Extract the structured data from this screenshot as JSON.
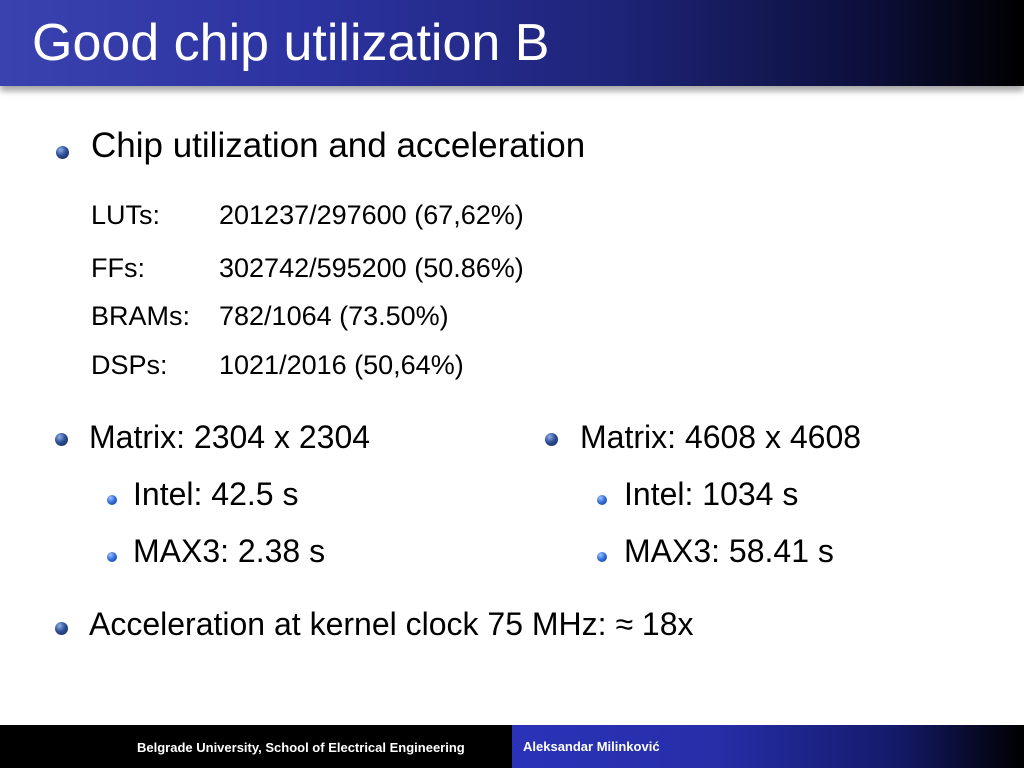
{
  "title": "Good chip utilization B",
  "section_heading": "Chip utilization and acceleration",
  "stats": [
    {
      "label": "LUTs:",
      "value": "201237/297600 (67,62%)"
    },
    {
      "label": "FFs:",
      "value": "302742/595200 (50.86%)"
    },
    {
      "label": "BRAMs:",
      "value": "782/1064 (73.50%)"
    },
    {
      "label": "DSPs:",
      "value": "1021/2016 (50,64%)"
    }
  ],
  "matrices": [
    {
      "heading": "Matrix: 2304 x 2304",
      "items": [
        "Intel: 42.5 s",
        "MAX3: 2.38 s"
      ]
    },
    {
      "heading": "Matrix: 4608 x 4608",
      "items": [
        "Intel: 1034 s",
        "MAX3: 58.41 s"
      ]
    }
  ],
  "acceleration": "Acceleration at kernel clock 75 MHz: ≈ 18x",
  "footer": {
    "institution": "Belgrade University, School of Electrical Engineering",
    "author": "Aleksandar Milinković"
  }
}
